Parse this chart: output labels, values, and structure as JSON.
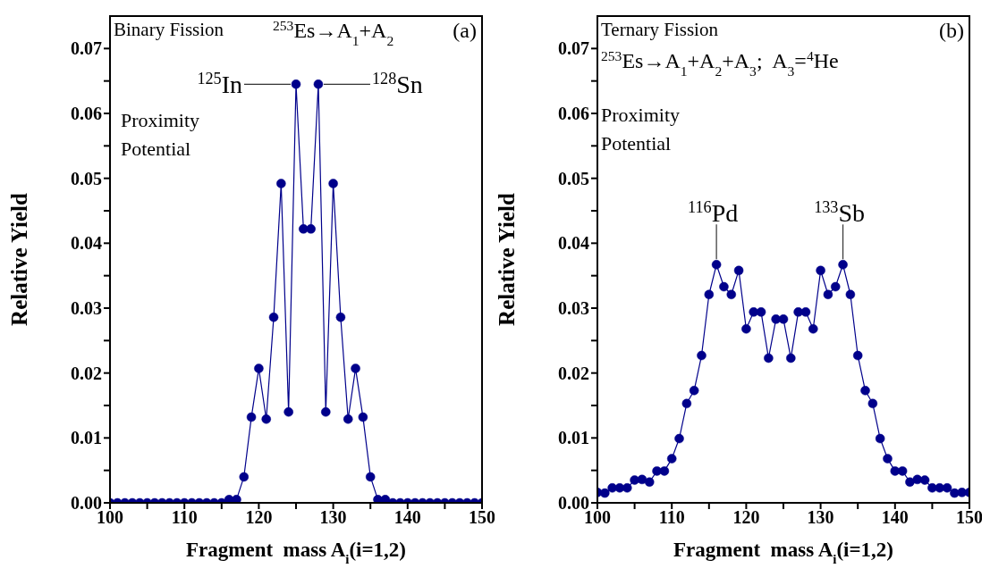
{
  "chart_data": [
    {
      "type": "line",
      "xlabel": "Fragment  mass A$_{i}$(i=1,2)",
      "ylabel": "Relative Yield",
      "marker": "circle",
      "annotations": [
        "Binary Fission",
        "$^{253}$Es→A$_{1}$+A$_{2}$",
        "(a)",
        "Proximity Potential",
        {
          "text": "$^{125}$In",
          "x": 125,
          "y": 0.0645
        },
        {
          "text": "$^{128}$Sn",
          "x": 128,
          "y": 0.0645
        }
      ],
      "x": [
        100,
        101,
        102,
        103,
        104,
        105,
        106,
        107,
        108,
        109,
        110,
        111,
        112,
        113,
        114,
        115,
        116,
        117,
        118,
        119,
        120,
        121,
        122,
        123,
        124,
        125,
        126,
        127,
        128,
        129,
        130,
        131,
        132,
        133,
        134,
        135,
        136,
        137,
        138,
        139,
        140,
        141,
        142,
        143,
        144,
        145,
        146,
        147,
        148,
        149,
        150
      ],
      "series": [
        {
          "color": "#00008b",
          "values": [
            0,
            0,
            0,
            0,
            0,
            0,
            0,
            0,
            0,
            0,
            0,
            0,
            0,
            0,
            0,
            0,
            0.0005,
            0.0005,
            0.004,
            0.0132,
            0.0207,
            0.0129,
            0.0286,
            0.0492,
            0.014,
            0.0645,
            0.0422,
            0.0422,
            0.0645,
            0.014,
            0.0492,
            0.0286,
            0.0129,
            0.0207,
            0.0132,
            0.004,
            0.0005,
            0.0005,
            0,
            0,
            0,
            0,
            0,
            0,
            0,
            0,
            0,
            0,
            0,
            0,
            0
          ]
        }
      ],
      "xlim": [
        100,
        150
      ],
      "xticks": [
        100,
        {
          "value": 105,
          "label": null
        },
        110,
        {
          "value": 115,
          "label": null
        },
        120,
        {
          "value": 125,
          "label": null
        },
        130,
        {
          "value": 135,
          "label": null
        },
        140,
        {
          "value": 145,
          "label": null
        },
        150
      ],
      "ylim": [
        0,
        0.075
      ],
      "yticks": [
        {
          "value": 0,
          "label": "0.00"
        },
        {
          "value": 0.005,
          "label": null
        },
        {
          "value": 0.01,
          "label": "0.01"
        },
        {
          "value": 0.015,
          "label": null
        },
        {
          "value": 0.02,
          "label": "0.02"
        },
        {
          "value": 0.025,
          "label": null
        },
        {
          "value": 0.03,
          "label": "0.03"
        },
        {
          "value": 0.035,
          "label": null
        },
        {
          "value": 0.04,
          "label": "0.04"
        },
        {
          "value": 0.045,
          "label": null
        },
        {
          "value": 0.05,
          "label": "0.05"
        },
        {
          "value": 0.055,
          "label": null
        },
        {
          "value": 0.06,
          "label": "0.06"
        },
        {
          "value": 0.065,
          "label": null
        },
        {
          "value": 0.07,
          "label": "0.07"
        }
      ]
    },
    {
      "type": "line",
      "xlabel": "Fragment  mass A$_{i}$(i=1,2)",
      "ylabel": "Relative Yield",
      "marker": "circle",
      "annotations": [
        "Ternary Fission",
        "$^{253}$Es→A$_{1}$+A$_{2}$+A$_{3}$;  A$_{3}$=$^{4}$He",
        "(b)",
        "Proximity Potential",
        {
          "text": "$^{116}$Pd",
          "x": 116,
          "y": 0.0367
        },
        {
          "text": "$^{133}$Sb",
          "x": 133,
          "y": 0.0367
        }
      ],
      "x": [
        100,
        101,
        102,
        103,
        104,
        105,
        106,
        107,
        108,
        109,
        110,
        111,
        112,
        113,
        114,
        115,
        116,
        117,
        118,
        119,
        120,
        121,
        122,
        123,
        124,
        125,
        126,
        127,
        128,
        129,
        130,
        131,
        132,
        133,
        134,
        135,
        136,
        137,
        138,
        139,
        140,
        141,
        142,
        143,
        144,
        145,
        146,
        147,
        148,
        149,
        150
      ],
      "series": [
        {
          "color": "#00008b",
          "values": [
            0.0016,
            0.0015,
            0.0023,
            0.0023,
            0.0023,
            0.0035,
            0.0036,
            0.0032,
            0.0049,
            0.0049,
            0.0068,
            0.0099,
            0.0153,
            0.0173,
            0.0227,
            0.0321,
            0.0367,
            0.0333,
            0.0321,
            0.0358,
            0.0268,
            0.0294,
            0.0294,
            0.0223,
            0.0283,
            0.0283,
            0.0223,
            0.0294,
            0.0294,
            0.0268,
            0.0358,
            0.0321,
            0.0333,
            0.0367,
            0.0321,
            0.0227,
            0.0173,
            0.0153,
            0.0099,
            0.0068,
            0.0049,
            0.0049,
            0.0032,
            0.0036,
            0.0035,
            0.0023,
            0.0023,
            0.0023,
            0.0015,
            0.0016,
            0.0016
          ]
        }
      ],
      "xlim": [
        100,
        150
      ],
      "xticks": [
        100,
        {
          "value": 105,
          "label": null
        },
        110,
        {
          "value": 115,
          "label": null
        },
        120,
        {
          "value": 125,
          "label": null
        },
        130,
        {
          "value": 135,
          "label": null
        },
        140,
        {
          "value": 145,
          "label": null
        },
        150
      ],
      "ylim": [
        0,
        0.075
      ],
      "yticks": [
        {
          "value": 0,
          "label": "0.00"
        },
        {
          "value": 0.005,
          "label": null
        },
        {
          "value": 0.01,
          "label": "0.01"
        },
        {
          "value": 0.015,
          "label": null
        },
        {
          "value": 0.02,
          "label": "0.02"
        },
        {
          "value": 0.025,
          "label": null
        },
        {
          "value": 0.03,
          "label": "0.03"
        },
        {
          "value": 0.035,
          "label": null
        },
        {
          "value": 0.04,
          "label": "0.04"
        },
        {
          "value": 0.045,
          "label": null
        },
        {
          "value": 0.05,
          "label": "0.05"
        },
        {
          "value": 0.055,
          "label": null
        },
        {
          "value": 0.06,
          "label": "0.06"
        },
        {
          "value": 0.065,
          "label": null
        },
        {
          "value": 0.07,
          "label": "0.07"
        }
      ]
    }
  ]
}
